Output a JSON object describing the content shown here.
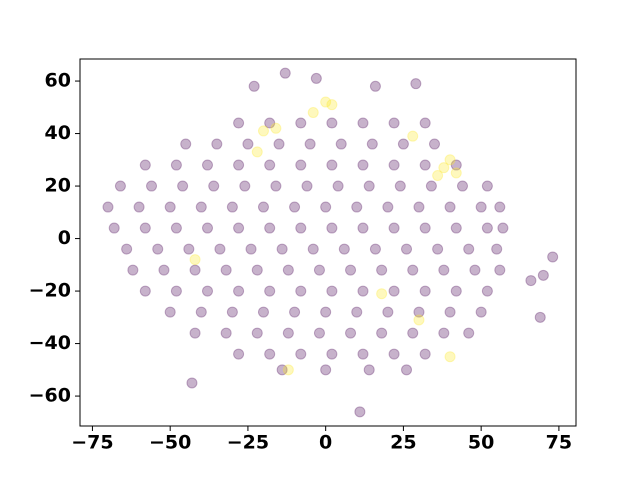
{
  "chart_data": {
    "type": "scatter",
    "xlim": [
      -79,
      80.5
    ],
    "ylim": [
      -71.4,
      68.4
    ],
    "xticks": [
      {
        "value": -75,
        "label": "−75"
      },
      {
        "value": -50,
        "label": "−50"
      },
      {
        "value": -25,
        "label": "−25"
      },
      0,
      25,
      50,
      75
    ],
    "yticks": [
      {
        "value": -60,
        "label": "−60"
      },
      {
        "value": -40,
        "label": "−40"
      },
      {
        "value": -20,
        "label": "−20"
      },
      0,
      20,
      40,
      60
    ],
    "opacity": 0.3,
    "series": [
      {
        "color": "#440154",
        "x": [
          -28,
          -18,
          -8,
          2,
          12,
          22,
          32,
          -45,
          -35,
          -25,
          -15,
          -5,
          5,
          15,
          25,
          35,
          -58,
          -48,
          -38,
          -28,
          -18,
          -8,
          2,
          12,
          22,
          32,
          42,
          -66,
          -56,
          -46,
          -36,
          -26,
          -16,
          -6,
          4,
          14,
          24,
          34,
          44,
          52,
          -70,
          -60,
          -50,
          -40,
          -30,
          -20,
          -10,
          0,
          10,
          20,
          30,
          40,
          50,
          56,
          -68,
          -58,
          -48,
          -38,
          -28,
          -18,
          -8,
          2,
          12,
          22,
          32,
          42,
          52,
          57,
          -64,
          -54,
          -44,
          -34,
          -24,
          -14,
          -4,
          6,
          16,
          26,
          36,
          46,
          55,
          -62,
          -52,
          -42,
          -32,
          -22,
          -12,
          -2,
          8,
          18,
          28,
          38,
          48,
          56,
          -58,
          -48,
          -38,
          -28,
          -18,
          -8,
          2,
          12,
          22,
          32,
          42,
          52,
          -50,
          -40,
          -30,
          -20,
          -10,
          0,
          10,
          20,
          30,
          40,
          50,
          -42,
          -32,
          -22,
          -12,
          -2,
          8,
          18,
          28,
          38,
          46,
          -28,
          -18,
          -8,
          2,
          12,
          22,
          32,
          -14,
          0,
          14,
          26,
          -43,
          11,
          -23,
          -13,
          -3,
          16,
          29,
          70,
          73,
          66,
          69
        ],
        "values": [
          44,
          44,
          44,
          44,
          44,
          44,
          44,
          36,
          36,
          36,
          36,
          36,
          36,
          36,
          36,
          36,
          28,
          28,
          28,
          28,
          28,
          28,
          28,
          28,
          28,
          28,
          28,
          20,
          20,
          20,
          20,
          20,
          20,
          20,
          20,
          20,
          20,
          20,
          20,
          20,
          12,
          12,
          12,
          12,
          12,
          12,
          12,
          12,
          12,
          12,
          12,
          12,
          12,
          12,
          4,
          4,
          4,
          4,
          4,
          4,
          4,
          4,
          4,
          4,
          4,
          4,
          4,
          4,
          -4,
          -4,
          -4,
          -4,
          -4,
          -4,
          -4,
          -4,
          -4,
          -4,
          -4,
          -4,
          -4,
          -12,
          -12,
          -12,
          -12,
          -12,
          -12,
          -12,
          -12,
          -12,
          -12,
          -12,
          -12,
          -12,
          -20,
          -20,
          -20,
          -20,
          -20,
          -20,
          -20,
          -20,
          -20,
          -20,
          -20,
          -20,
          -28,
          -28,
          -28,
          -28,
          -28,
          -28,
          -28,
          -28,
          -28,
          -28,
          -28,
          -36,
          -36,
          -36,
          -36,
          -36,
          -36,
          -36,
          -36,
          -36,
          -36,
          -44,
          -44,
          -44,
          -44,
          -44,
          -44,
          -44,
          -50,
          -50,
          -50,
          -50,
          -55,
          -66,
          58,
          63,
          61,
          58,
          59,
          -14,
          -7,
          -16,
          -30
        ]
      },
      {
        "color": "#fde725",
        "x": [
          -22,
          -20,
          -16,
          -4,
          0,
          2,
          38,
          40,
          42,
          36,
          40,
          -12,
          -42,
          18,
          30,
          28
        ],
        "values": [
          33,
          41,
          42,
          48,
          52,
          51,
          27,
          30,
          25,
          24,
          -45,
          -50,
          -8,
          -21,
          -31,
          39
        ]
      }
    ]
  }
}
